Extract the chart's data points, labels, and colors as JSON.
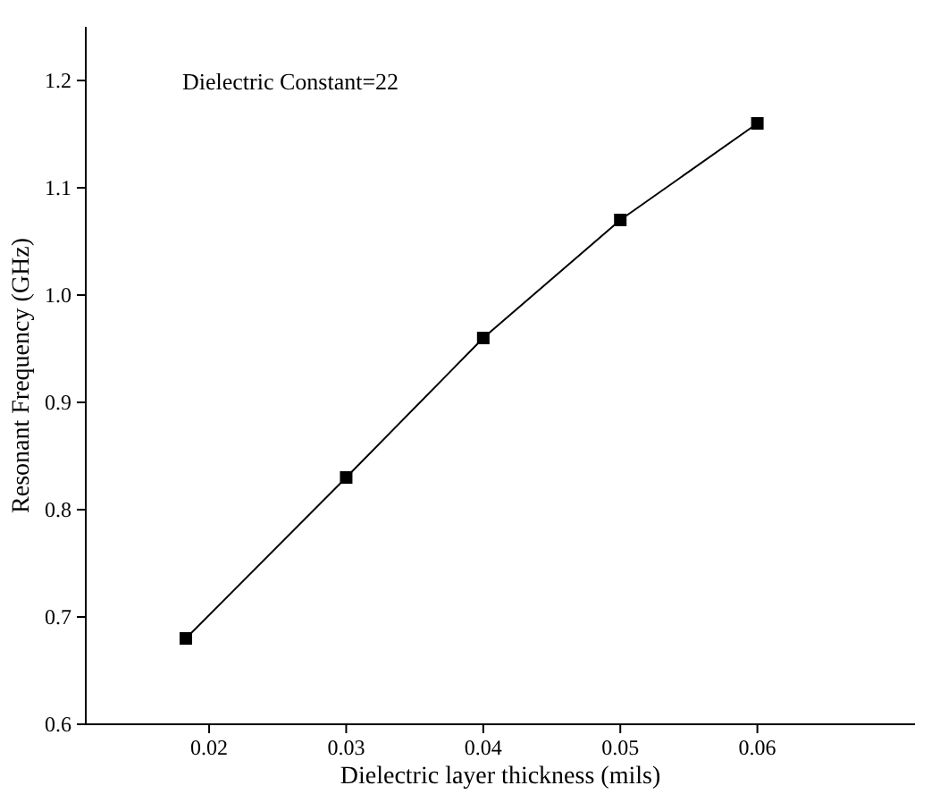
{
  "chart_data": {
    "type": "line",
    "xlabel": "Dielectric layer thickness (mils)",
    "ylabel": "Resonant Frequency (GHz)",
    "annotations": [
      "Dielectric Constant=22"
    ],
    "x": [
      0.0183,
      0.03,
      0.04,
      0.05,
      0.06
    ],
    "series": [
      {
        "color": "#000000",
        "values": [
          0.68,
          0.83,
          0.96,
          1.07,
          1.16
        ]
      }
    ],
    "xlim": [
      0.011,
      0.0715
    ],
    "ylim": [
      0.6,
      1.25
    ],
    "xticks": [
      {
        "value": 0.02,
        "label": "0.02"
      },
      {
        "value": 0.03,
        "label": "0.03"
      },
      {
        "value": 0.04,
        "label": "0.04"
      },
      {
        "value": 0.05,
        "label": "0.05"
      },
      {
        "value": 0.06,
        "label": "0.06"
      }
    ],
    "yticks": [
      {
        "value": 0.6,
        "label": "0.6"
      },
      {
        "value": 0.7,
        "label": "0.7"
      },
      {
        "value": 0.8,
        "label": "0.8"
      },
      {
        "value": 0.9,
        "label": "0.9"
      },
      {
        "value": 1.0,
        "label": "1.0"
      },
      {
        "value": 1.1,
        "label": "1.1"
      },
      {
        "value": 1.2,
        "label": "1.2"
      }
    ],
    "marker": "square",
    "line_style": "solid"
  }
}
